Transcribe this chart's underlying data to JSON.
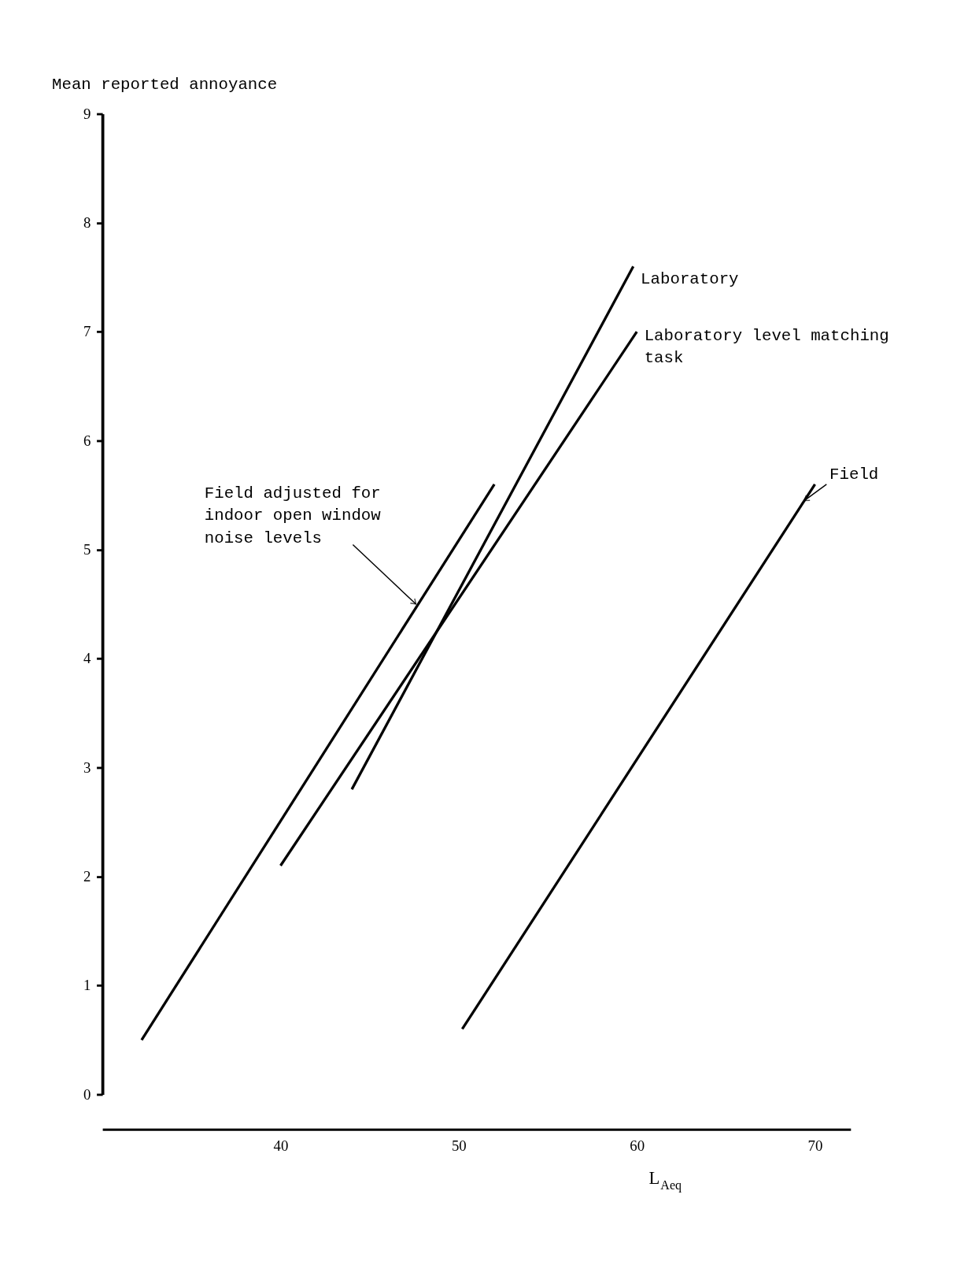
{
  "chart_data": {
    "type": "line",
    "xlabel": "L$_{Aeq}$",
    "ylabel": "Mean reported annoyance",
    "xlim": [
      30,
      72
    ],
    "xticks": [
      40,
      50,
      60,
      70
    ],
    "ylim": [
      0,
      9
    ],
    "yticks": [
      0,
      1,
      2,
      3,
      4,
      5,
      6,
      7,
      8,
      9
    ],
    "grid": false,
    "marker": "none",
    "line_style": "solid",
    "annotations": [
      {
        "text": "Field adjusted for indoor open window noise levels",
        "x": 47.6,
        "y": 4.5
      },
      {
        "text": "Field",
        "x": 69.4,
        "y": 5.45
      }
    ],
    "series": [
      {
        "name": "Laboratory",
        "color": "#000000",
        "x": [
          44.0,
          59.8
        ],
        "values": [
          2.8,
          7.6
        ]
      },
      {
        "name": "Laboratory level matching task",
        "color": "#000000",
        "x": [
          40,
          60
        ],
        "values": [
          2.1,
          7.0
        ]
      },
      {
        "color": "#000000",
        "x": [
          32.2,
          52
        ],
        "values": [
          0.5,
          5.6
        ]
      },
      {
        "color": "#000000",
        "x": [
          50.2,
          70
        ],
        "values": [
          0.6,
          5.6
        ]
      }
    ]
  }
}
